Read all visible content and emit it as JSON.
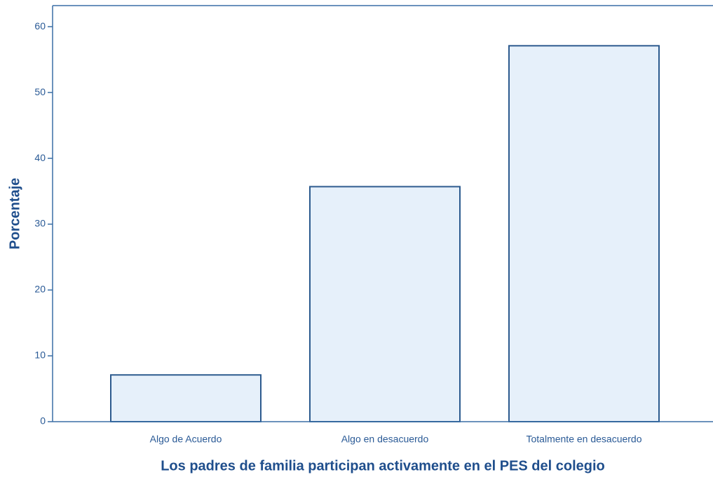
{
  "chart_data": {
    "type": "bar",
    "categories": [
      "Algo de Acuerdo",
      "Algo en desacuerdo",
      "Totalmente en desacuerdo"
    ],
    "values": [
      7.1,
      35.7,
      57.1
    ],
    "color": "#e6f0fa",
    "edge_color": "#2c5a8e",
    "ylim": [
      0,
      63.2
    ],
    "yticks": [
      0,
      10,
      20,
      30,
      40,
      50,
      60
    ],
    "ylabel": "Porcentaje",
    "xlabel": "Los padres de familia participan activamente en el PES del colegio",
    "grid": false
  }
}
